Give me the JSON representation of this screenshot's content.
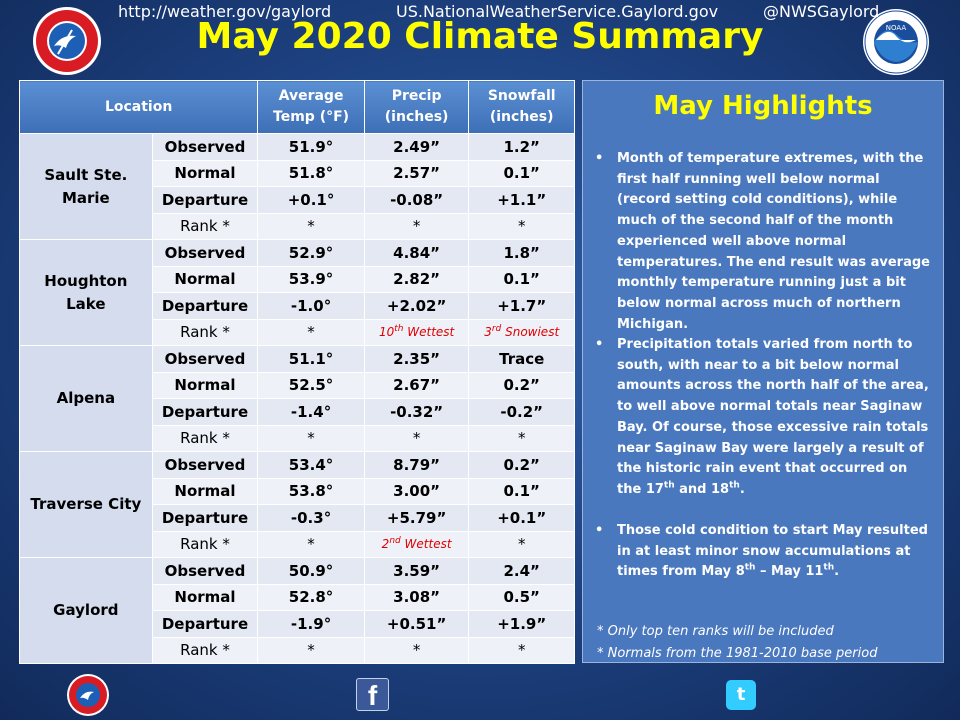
{
  "title": "May 2020 Climate Summary",
  "logos": {
    "nws": {
      "ring_text": "NATIONAL WEATHER SERVICE",
      "color": "#d91c24"
    },
    "noaa": {
      "label": "NOAA",
      "color": "#1a4d9c"
    }
  },
  "table": {
    "headers": {
      "location": "Location",
      "avg_temp": [
        "Average",
        "Temp (°F)"
      ],
      "precip": [
        "Precip",
        "(inches)"
      ],
      "snowfall": [
        "Snowfall",
        "(inches)"
      ]
    },
    "row_labels": [
      "Observed",
      "Normal",
      "Departure",
      "Rank *"
    ],
    "locations": [
      {
        "name": [
          "Sault Ste. Marie"
        ],
        "rows": [
          [
            "51.9°",
            "2.49”",
            "1.2”"
          ],
          [
            "51.8°",
            "2.57”",
            "0.1”"
          ],
          [
            "+0.1°",
            "-0.08”",
            "+1.1”"
          ],
          [
            "*",
            "*",
            "*"
          ]
        ]
      },
      {
        "name": [
          "Houghton",
          "Lake"
        ],
        "rows": [
          [
            "52.9°",
            "4.84”",
            "1.8”"
          ],
          [
            "53.9°",
            "2.82”",
            "0.1”"
          ],
          [
            "-1.0°",
            "+2.02”",
            "+1.7”"
          ],
          [
            "*",
            "10th Wettest",
            "3rd Snowiest"
          ]
        ]
      },
      {
        "name": [
          "Alpena"
        ],
        "rows": [
          [
            "51.1°",
            "2.35”",
            "Trace"
          ],
          [
            "52.5°",
            "2.67”",
            "0.2”"
          ],
          [
            "-1.4°",
            "-0.32”",
            "-0.2”"
          ],
          [
            "*",
            "*",
            "*"
          ]
        ]
      },
      {
        "name": [
          "Traverse City"
        ],
        "rows": [
          [
            "53.4°",
            "8.79”",
            "0.2”"
          ],
          [
            "53.8°",
            "3.00”",
            "0.1”"
          ],
          [
            "-0.3°",
            "+5.79”",
            "+0.1”"
          ],
          [
            "*",
            "2nd Wettest",
            "*"
          ]
        ]
      },
      {
        "name": [
          "Gaylord"
        ],
        "rows": [
          [
            "50.9°",
            "3.59”",
            "2.4”"
          ],
          [
            "52.8°",
            "3.08”",
            "0.5”"
          ],
          [
            "-1.9°",
            "+0.51”",
            "+1.9”"
          ],
          [
            "*",
            "*",
            "*"
          ]
        ]
      }
    ]
  },
  "highlights": {
    "title": "May Highlights",
    "bullets": [
      "Month of temperature extremes, with the first half running well below normal (record setting cold conditions),  while much of the second half of the month experienced well above normal temperatures. The end result was average monthly temperature running just a bit below normal across much of northern Michigan.",
      "Precipitation totals varied from north to south, with near to a bit below normal amounts across the north half of the area, to well above normal totals near Saginaw Bay.  Of course, those excessive rain totals near Saginaw Bay were largely a result of the historic rain event that occurred on the 17th and 18th.",
      "Those cold condition to start May resulted in at least minor snow accumulations at times from May 8th – May 11th."
    ],
    "notes": [
      "*  Only top ten ranks will be included",
      "*  Normals from the 1981-2010 base period"
    ]
  },
  "footer": {
    "website": "http://weather.gov/gaylord",
    "facebook": "US.NationalWeatherService.Gaylord.gov",
    "twitter": "@NWSGaylord"
  }
}
